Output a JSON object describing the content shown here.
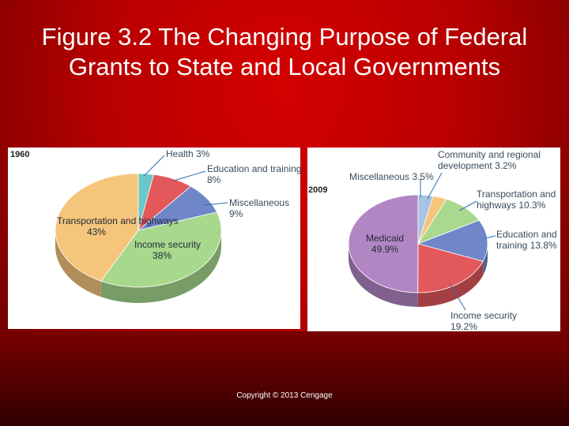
{
  "slide": {
    "title": "Figure 3.2 The Changing Purpose of Federal Grants to State and Local Governments",
    "copyright": "Copyright © 2013 Cengage"
  },
  "chart_data": [
    {
      "type": "pie",
      "title": "1960",
      "slices": [
        {
          "label": "Health",
          "value": 3,
          "display": "3%",
          "color": "#6cc5c6"
        },
        {
          "label": "Education and training",
          "value": 8,
          "display": "8%",
          "color": "#e2585b"
        },
        {
          "label": "Miscellaneous",
          "value": 9,
          "display": "9%",
          "color": "#6f86c9"
        },
        {
          "label": "Income security",
          "value": 38,
          "display": "38%",
          "color": "#a7d88c"
        },
        {
          "label": "Transportation and highways",
          "value": 43,
          "display": "43%",
          "color": "#f6c57c"
        }
      ]
    },
    {
      "type": "pie",
      "title": "2009",
      "slices": [
        {
          "label": "Miscellaneous",
          "value": 3.5,
          "display": "3.5%",
          "color": "#a8c3e3"
        },
        {
          "label": "Community and regional development",
          "value": 3.2,
          "display": "3.2%",
          "color": "#f5c57a"
        },
        {
          "label": "Transportation and highways",
          "value": 10.3,
          "display": "10.3%",
          "color": "#a9d98d"
        },
        {
          "label": "Education and training",
          "value": 13.8,
          "display": "13.8%",
          "color": "#6f86c9"
        },
        {
          "label": "Income security",
          "value": 19.2,
          "display": "19.2%",
          "color": "#e2585b"
        },
        {
          "label": "Medicaid",
          "value": 49.9,
          "display": "49.9%",
          "color": "#b286c3"
        }
      ]
    }
  ]
}
